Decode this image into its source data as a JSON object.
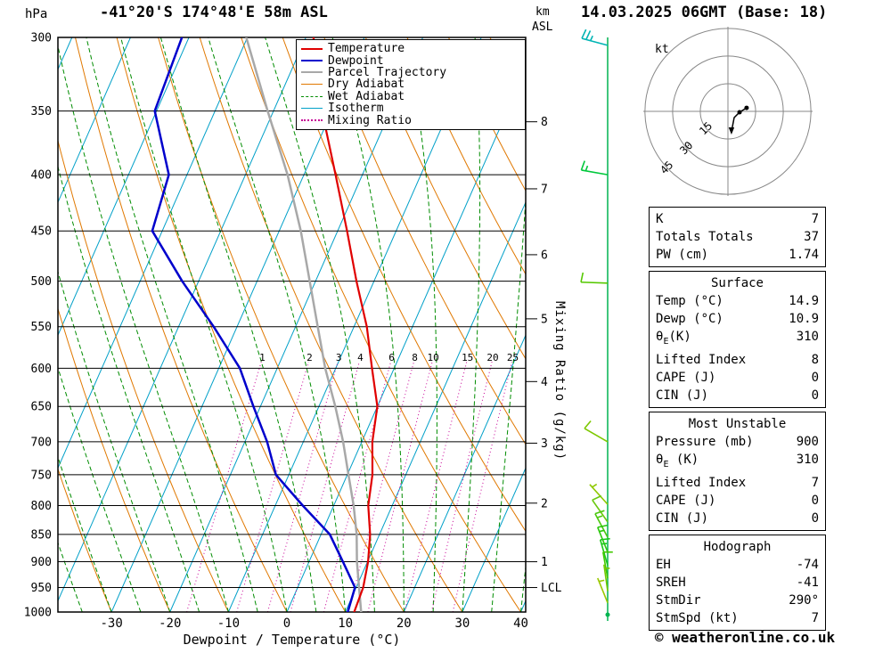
{
  "header": {
    "pressure_unit": "hPa",
    "station": "-41°20'S 174°48'E 58m ASL",
    "datetime": "14.03.2025 06GMT (Base: 18)",
    "km_label": "km",
    "asl_label": "ASL",
    "kt_label": "kt"
  },
  "axes": {
    "x_label": "Dewpoint / Temperature (°C)",
    "mixing_ratio_label": "Mixing Ratio (g/kg)",
    "lcl_label": "LCL"
  },
  "legend": {
    "items": [
      {
        "label": "Temperature",
        "color": "#e00000",
        "style": "solid",
        "width": 2
      },
      {
        "label": "Dewpoint",
        "color": "#0000cc",
        "style": "solid",
        "width": 2
      },
      {
        "label": "Parcel Trajectory",
        "color": "#a8a8a8",
        "style": "solid",
        "width": 2
      },
      {
        "label": "Dry Adiabat",
        "color": "#e07800",
        "style": "solid",
        "width": 1
      },
      {
        "label": "Wet Adiabat",
        "color": "#008c00",
        "style": "dashed",
        "width": 1
      },
      {
        "label": "Isotherm",
        "color": "#00a0c8",
        "style": "solid",
        "width": 1
      },
      {
        "label": "Mixing Ratio",
        "color": "#c80096",
        "style": "dotted",
        "width": 2
      }
    ]
  },
  "chart_data": {
    "type": "skewt-log-p",
    "p_range": [
      300,
      1000
    ],
    "pressure_ticks": [
      300,
      350,
      400,
      450,
      500,
      550,
      600,
      650,
      700,
      750,
      800,
      850,
      900,
      950,
      1000
    ],
    "x_ticks_c": [
      -30,
      -20,
      -10,
      0,
      10,
      20,
      30,
      40
    ],
    "isotherm_step_c": 10,
    "dry_adiabats_theta_c": {
      "from": -40,
      "to": 110,
      "step": 10
    },
    "wet_adiabats_thetaw_c": {
      "from": -40,
      "to": 40,
      "step": 5
    },
    "mixing_ratio_g_kg": [
      1,
      2,
      3,
      4,
      6,
      8,
      10,
      15,
      20,
      25
    ],
    "temperature_c": [
      [
        1000,
        11.5
      ],
      [
        950,
        11.2
      ],
      [
        900,
        10.1
      ],
      [
        850,
        8.4
      ],
      [
        800,
        5.9
      ],
      [
        750,
        4.3
      ],
      [
        700,
        1.8
      ],
      [
        650,
        0.0
      ],
      [
        600,
        -3.8
      ],
      [
        550,
        -7.8
      ],
      [
        500,
        -13.0
      ],
      [
        450,
        -18.4
      ],
      [
        400,
        -24.6
      ],
      [
        350,
        -31.7
      ],
      [
        300,
        -38.7
      ]
    ],
    "dewpoint_c": [
      [
        1000,
        10.4
      ],
      [
        950,
        9.8
      ],
      [
        900,
        5.8
      ],
      [
        850,
        1.5
      ],
      [
        800,
        -5.3
      ],
      [
        750,
        -12.2
      ],
      [
        700,
        -16.2
      ],
      [
        650,
        -21.2
      ],
      [
        600,
        -26.4
      ],
      [
        550,
        -34.0
      ],
      [
        500,
        -42.8
      ],
      [
        450,
        -51.7
      ],
      [
        400,
        -53.1
      ],
      [
        350,
        -60.3
      ],
      [
        300,
        -61.2
      ]
    ],
    "parcel_c": [
      [
        1000,
        12.7
      ],
      [
        950,
        10.5
      ],
      [
        900,
        8.2
      ],
      [
        850,
        6.1
      ],
      [
        800,
        3.4
      ],
      [
        750,
        0.2
      ],
      [
        700,
        -3.2
      ],
      [
        650,
        -7.2
      ],
      [
        600,
        -11.8
      ],
      [
        550,
        -16.2
      ],
      [
        500,
        -21.0
      ],
      [
        450,
        -26.3
      ],
      [
        400,
        -32.8
      ],
      [
        350,
        -41.0
      ],
      [
        300,
        -50.2
      ]
    ],
    "km_ticks": [
      {
        "km": 8,
        "p": 358
      },
      {
        "km": 7,
        "p": 412
      },
      {
        "km": 6,
        "p": 473
      },
      {
        "km": 5,
        "p": 541
      },
      {
        "km": 4,
        "p": 617
      },
      {
        "km": 3,
        "p": 702
      },
      {
        "km": 2,
        "p": 796
      },
      {
        "km": 1,
        "p": 900
      }
    ],
    "lcl_pressure": 950,
    "wind_barbs": [
      {
        "p": 305,
        "spd_kt": 25,
        "dir_deg": 285,
        "color": "#00b4b4"
      },
      {
        "p": 400,
        "spd_kt": 15,
        "dir_deg": 280,
        "color": "#00c83c"
      },
      {
        "p": 502,
        "spd_kt": 10,
        "dir_deg": 272,
        "color": "#55c800"
      },
      {
        "p": 700,
        "spd_kt": 9,
        "dir_deg": 300,
        "color": "#7dc800"
      },
      {
        "p": 798,
        "spd_kt": 5,
        "dir_deg": 318,
        "color": "#8fc800"
      },
      {
        "p": 828,
        "spd_kt": 10,
        "dir_deg": 325,
        "color": "#69c80e"
      },
      {
        "p": 855,
        "spd_kt": 14,
        "dir_deg": 332,
        "color": "#4bc80e"
      },
      {
        "p": 882,
        "spd_kt": 15,
        "dir_deg": 338,
        "color": "#2dc80e"
      },
      {
        "p": 907,
        "spd_kt": 15,
        "dir_deg": 344,
        "color": "#19c819"
      },
      {
        "p": 932,
        "spd_kt": 10,
        "dir_deg": 350,
        "color": "#41c800"
      },
      {
        "p": 957,
        "spd_kt": 7,
        "dir_deg": 352,
        "color": "#73c800"
      },
      {
        "p": 981,
        "spd_kt": 5,
        "dir_deg": 338,
        "color": "#9bc800"
      }
    ],
    "hodograph": {
      "rings_kt": [
        15,
        30,
        45
      ],
      "trace_uv_kt": [
        [
          1.9,
          -11.1
        ],
        [
          3.4,
          -3.4
        ],
        [
          6.3,
          -0.5
        ],
        [
          10.1,
          1.9
        ]
      ],
      "dots_uv_kt": [
        [
          6.3,
          -0.5
        ],
        [
          10.1,
          1.9
        ]
      ]
    },
    "colors": {
      "temperature": "#e00000",
      "dewpoint": "#0000cc",
      "parcel": "#a8a8a8",
      "dry_adiabat": "#e07800",
      "wet_adiabat": "#008c00",
      "isotherm": "#00a0c8",
      "mixing_ratio": "#c80096",
      "grid": "#000000",
      "wind_staff": "#00b450",
      "hodo_grid": "#888888"
    }
  },
  "stats": {
    "sections": [
      {
        "rows": [
          {
            "label": "K",
            "value": "7"
          },
          {
            "label": "Totals Totals",
            "value": "37"
          },
          {
            "label": "PW (cm)",
            "value": "1.74"
          }
        ]
      },
      {
        "header": "Surface",
        "rows": [
          {
            "label": "Temp (°C)",
            "value": "14.9"
          },
          {
            "label": "Dewp (°C)",
            "value": "10.9"
          },
          {
            "theta": "θ",
            "sub": "E",
            "rest": "(K)",
            "value": "310"
          },
          {
            "label": "Lifted Index",
            "value": "8"
          },
          {
            "label": "CAPE (J)",
            "value": "0"
          },
          {
            "label": "CIN (J)",
            "value": "0"
          }
        ]
      },
      {
        "header": "Most Unstable",
        "rows": [
          {
            "label": "Pressure (mb)",
            "value": "900"
          },
          {
            "theta": "θ",
            "sub": "E",
            "rest": " (K)",
            "value": "310"
          },
          {
            "label": "Lifted Index",
            "value": "7"
          },
          {
            "label": "CAPE (J)",
            "value": "0"
          },
          {
            "label": "CIN (J)",
            "value": "0"
          }
        ]
      },
      {
        "header": "Hodograph",
        "rows": [
          {
            "label": "EH",
            "value": "-74"
          },
          {
            "label": "SREH",
            "value": "-41"
          },
          {
            "label": "StmDir",
            "value": "290°"
          },
          {
            "label": "StmSpd (kt)",
            "value": "7"
          }
        ]
      }
    ]
  },
  "footer": {
    "credit": "© weatheronline.co.uk"
  }
}
